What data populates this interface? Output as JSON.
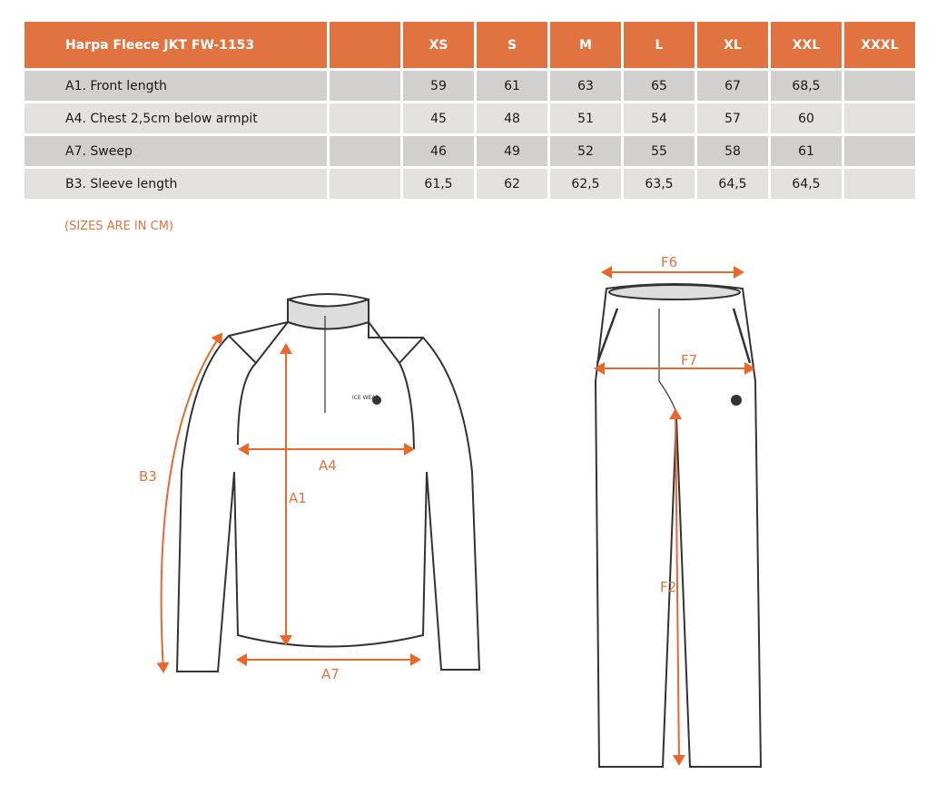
{
  "table": {
    "title": "Harpa Fleece JKT FW-1153",
    "sizes": [
      "XS",
      "S",
      "M",
      "L",
      "XL",
      "XXL",
      "XXXL"
    ],
    "rows": [
      {
        "label": "A1. Front length",
        "values": [
          "59",
          "61",
          "63",
          "65",
          "67",
          "68,5",
          ""
        ]
      },
      {
        "label": "A4. Chest 2,5cm below armpit",
        "values": [
          "45",
          "48",
          "51",
          "54",
          "57",
          "60",
          ""
        ]
      },
      {
        "label": "A7. Sweep",
        "values": [
          "46",
          "49",
          "52",
          "55",
          "58",
          "61",
          ""
        ]
      },
      {
        "label": "B3. Sleeve length",
        "values": [
          "61,5",
          "62",
          "62,5",
          "63,5",
          "64,5",
          "64,5",
          ""
        ]
      }
    ]
  },
  "note": "(SIZES ARE IN CM)",
  "diagram": {
    "jacket_labels": {
      "a1": "A1",
      "a4": "A4",
      "a7": "A7",
      "b3": "B3"
    },
    "pants_labels": {
      "f2": "F2",
      "f6": "F6",
      "f7": "F7"
    },
    "logo_text": "ICE WEAR"
  },
  "colors": {
    "accent": "#e07340",
    "row_dark": "#d1d0ce",
    "row_light": "#e3e2e1"
  }
}
